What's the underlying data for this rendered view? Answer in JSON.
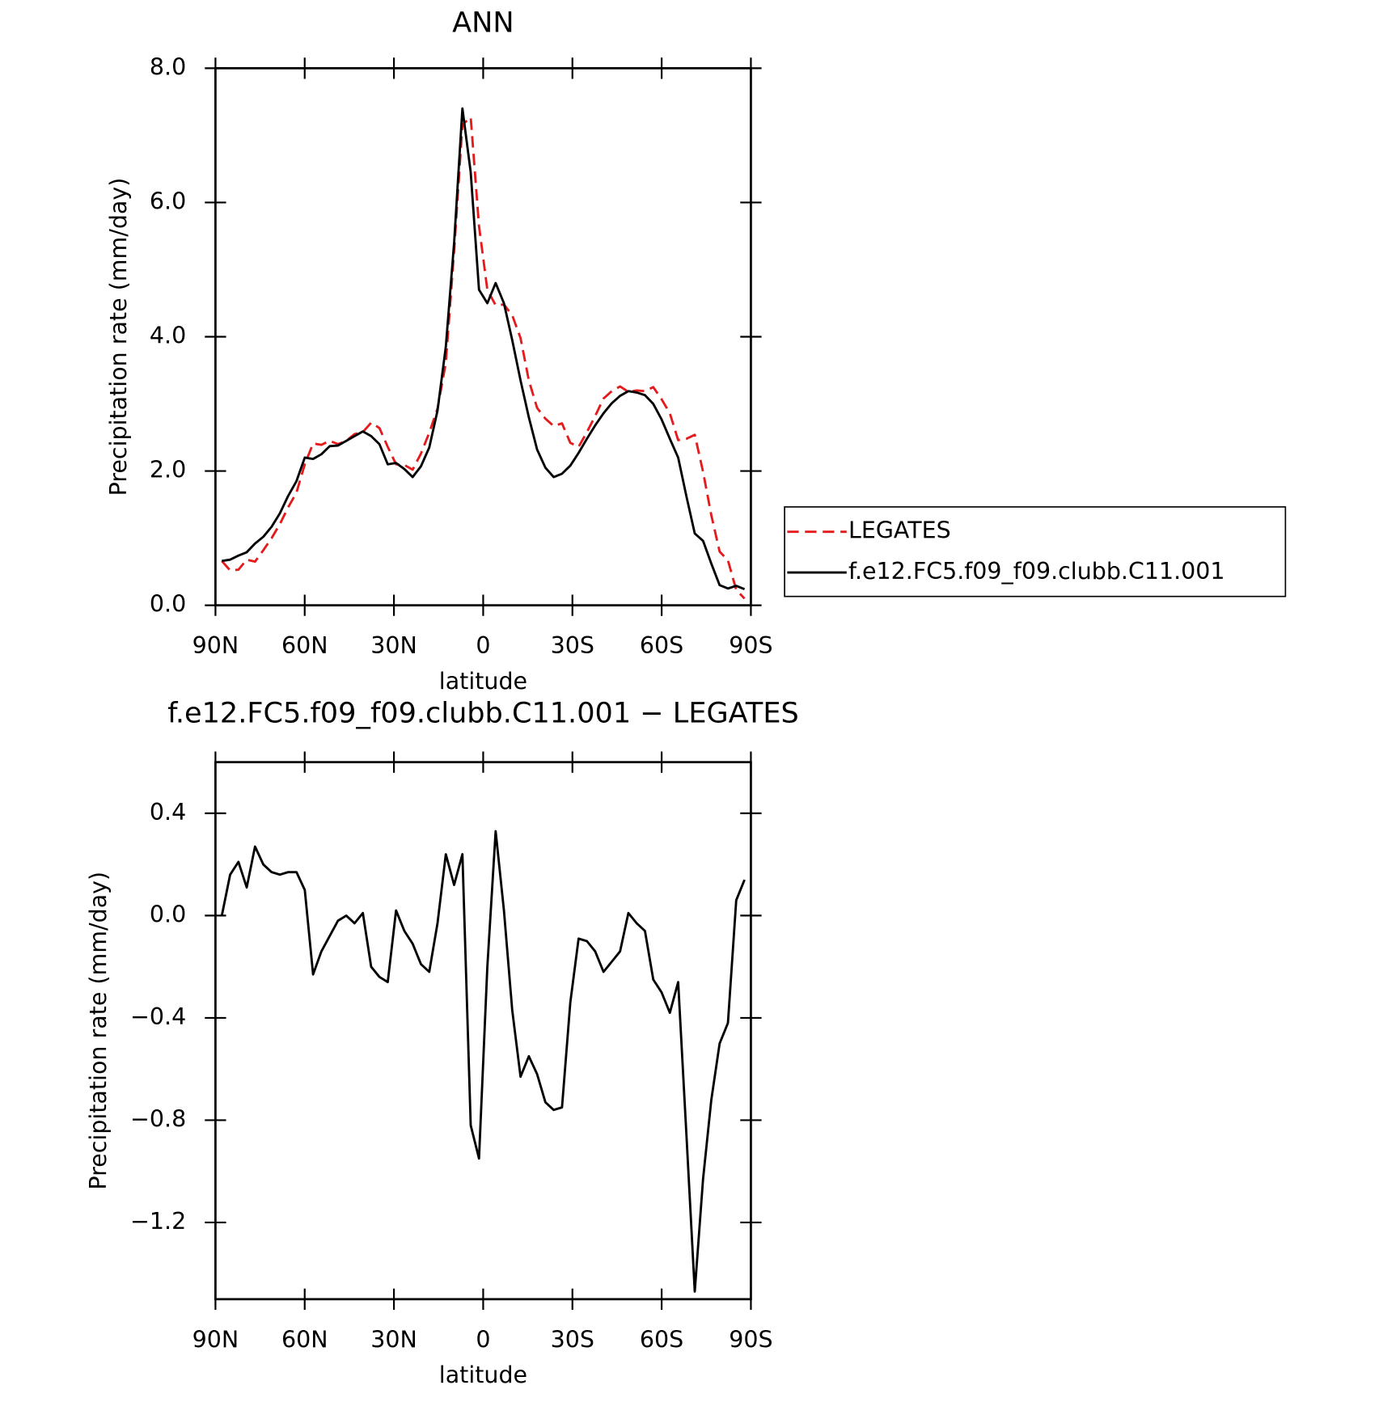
{
  "chart_data": [
    {
      "type": "line",
      "title": "ANN",
      "xlabel": "latitude",
      "ylabel": "Precipitation rate (mm/day)",
      "x": [
        87.86,
        85.07,
        82.28,
        79.49,
        76.7,
        73.92,
        71.13,
        68.34,
        65.55,
        62.76,
        59.97,
        57.18,
        54.39,
        51.6,
        48.81,
        46.02,
        43.24,
        40.45,
        37.66,
        34.87,
        32.08,
        29.29,
        26.5,
        23.71,
        20.92,
        18.13,
        15.35,
        12.56,
        9.77,
        6.98,
        4.19,
        1.4,
        -1.4,
        -4.19,
        -6.98,
        -9.77,
        -12.56,
        -15.35,
        -18.13,
        -20.92,
        -23.71,
        -26.5,
        -29.29,
        -32.08,
        -34.87,
        -37.66,
        -40.45,
        -43.24,
        -46.02,
        -48.81,
        -51.6,
        -54.39,
        -57.18,
        -59.97,
        -62.76,
        -65.55,
        -68.34,
        -71.13,
        -73.92,
        -76.7,
        -79.49,
        -82.28,
        -85.07,
        -87.86
      ],
      "series": [
        {
          "name": "LEGATES",
          "color": "#e41a1c",
          "dash": true,
          "values": [
            0.66,
            0.52,
            0.53,
            0.68,
            0.65,
            0.82,
            1.0,
            1.21,
            1.46,
            1.68,
            2.1,
            2.41,
            2.39,
            2.45,
            2.4,
            2.45,
            2.55,
            2.58,
            2.72,
            2.64,
            2.36,
            2.1,
            2.09,
            2.02,
            2.26,
            2.57,
            2.93,
            3.61,
            5.28,
            7.16,
            7.27,
            5.65,
            4.7,
            4.47,
            4.48,
            4.32,
            3.98,
            3.35,
            2.94,
            2.78,
            2.67,
            2.71,
            2.42,
            2.36,
            2.58,
            2.82,
            3.08,
            3.19,
            3.26,
            3.18,
            3.2,
            3.19,
            3.25,
            3.07,
            2.86,
            2.46,
            2.48,
            2.54,
            1.99,
            1.34,
            0.8,
            0.67,
            0.23,
            0.1
          ]
        },
        {
          "name": "f.e12.FC5.f09_f09.clubb.C11.001",
          "color": "#000000",
          "dash": false,
          "values": [
            0.66,
            0.68,
            0.74,
            0.79,
            0.92,
            1.02,
            1.17,
            1.37,
            1.63,
            1.85,
            2.2,
            2.18,
            2.25,
            2.37,
            2.38,
            2.45,
            2.52,
            2.59,
            2.52,
            2.4,
            2.1,
            2.12,
            2.03,
            1.91,
            2.07,
            2.35,
            2.9,
            3.85,
            5.4,
            7.4,
            6.45,
            4.7,
            4.5,
            4.8,
            4.5,
            3.95,
            3.35,
            2.8,
            2.32,
            2.05,
            1.91,
            1.96,
            2.08,
            2.27,
            2.48,
            2.68,
            2.86,
            3.01,
            3.12,
            3.19,
            3.17,
            3.13,
            3.0,
            2.77,
            2.48,
            2.2,
            1.62,
            1.07,
            0.96,
            0.62,
            0.3,
            0.25,
            0.29,
            0.24
          ]
        }
      ],
      "xlim": [
        90,
        -90
      ],
      "xticks": [
        {
          "value": 90,
          "label": "90N"
        },
        {
          "value": 60,
          "label": "60N"
        },
        {
          "value": 30,
          "label": "30N"
        },
        0,
        {
          "value": -30,
          "label": "30S"
        },
        {
          "value": -60,
          "label": "60S"
        },
        {
          "value": -90,
          "label": "90S"
        }
      ],
      "ylim": [
        0,
        8
      ],
      "yticks": [
        {
          "value": 0,
          "label": "0.0"
        },
        {
          "value": 2,
          "label": "2.0"
        },
        {
          "value": 4,
          "label": "4.0"
        },
        {
          "value": 6,
          "label": "6.0"
        },
        {
          "value": 8,
          "label": "8.0"
        }
      ],
      "legend": "outside right"
    },
    {
      "type": "line",
      "title": "f.e12.FC5.f09_f09.clubb.C11.001 − LEGATES",
      "xlabel": "latitude",
      "ylabel": "Precipitation rate (mm/day)",
      "x": [
        87.86,
        85.07,
        82.28,
        79.49,
        76.7,
        73.92,
        71.13,
        68.34,
        65.55,
        62.76,
        59.97,
        57.18,
        54.39,
        51.6,
        48.81,
        46.02,
        43.24,
        40.45,
        37.66,
        34.87,
        32.08,
        29.29,
        26.5,
        23.71,
        20.92,
        18.13,
        15.35,
        12.56,
        9.77,
        6.98,
        4.19,
        1.4,
        -1.4,
        -4.19,
        -6.98,
        -9.77,
        -12.56,
        -15.35,
        -18.13,
        -20.92,
        -23.71,
        -26.5,
        -29.29,
        -32.08,
        -34.87,
        -37.66,
        -40.45,
        -43.24,
        -46.02,
        -48.81,
        -51.6,
        -54.39,
        -57.18,
        -59.97,
        -62.76,
        -65.55,
        -68.34,
        -71.13,
        -73.92,
        -76.7,
        -79.49,
        -82.28,
        -85.07,
        -87.86
      ],
      "values": [
        0.0,
        0.16,
        0.21,
        0.11,
        0.27,
        0.2,
        0.17,
        0.16,
        0.17,
        0.17,
        0.1,
        -0.23,
        -0.14,
        -0.08,
        -0.02,
        0.0,
        -0.03,
        0.01,
        -0.2,
        -0.24,
        -0.26,
        0.02,
        -0.06,
        -0.11,
        -0.19,
        -0.22,
        -0.03,
        0.24,
        0.12,
        0.24,
        -0.82,
        -0.95,
        -0.2,
        0.33,
        0.02,
        -0.37,
        -0.63,
        -0.55,
        -0.62,
        -0.73,
        -0.76,
        -0.75,
        -0.34,
        -0.09,
        -0.1,
        -0.14,
        -0.22,
        -0.18,
        -0.14,
        0.01,
        -0.03,
        -0.06,
        -0.25,
        -0.3,
        -0.38,
        -0.26,
        -0.86,
        -1.47,
        -1.03,
        -0.72,
        -0.5,
        -0.42,
        0.06,
        0.14
      ],
      "color": "#000000",
      "xlim": [
        90,
        -90
      ],
      "xticks": [
        {
          "value": 90,
          "label": "90N"
        },
        {
          "value": 60,
          "label": "60N"
        },
        {
          "value": 30,
          "label": "30N"
        },
        0,
        {
          "value": -30,
          "label": "30S"
        },
        {
          "value": -60,
          "label": "60S"
        },
        {
          "value": -90,
          "label": "90S"
        }
      ],
      "ylim": [
        -1.5,
        0.6
      ],
      "yticks": [
        0.4,
        {
          "value": 0,
          "label": "0.0"
        },
        {
          "value": -0.4,
          "label": "−0.4"
        },
        {
          "value": -0.8,
          "label": "−0.8"
        },
        {
          "value": -1.2,
          "label": "−1.2"
        }
      ]
    }
  ]
}
